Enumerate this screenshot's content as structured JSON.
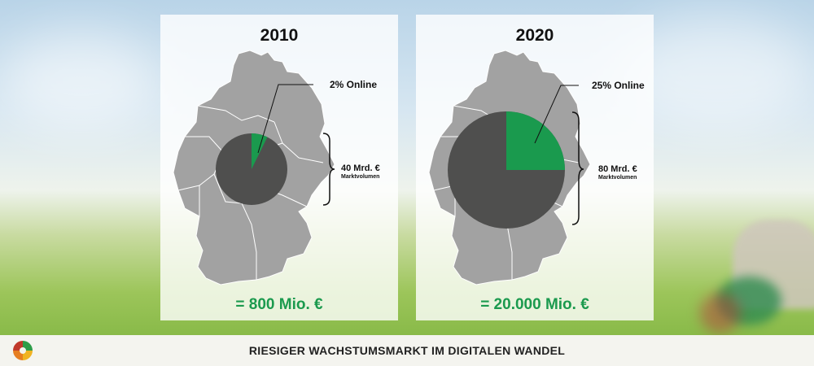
{
  "footer": {
    "title": "RIESIGER WACHSTUMSMARKT IM DIGITALEN WANDEL"
  },
  "colors": {
    "online": "#1a9a4e",
    "offline": "#4f4f4e",
    "map": "#a2a2a2",
    "accent_text": "#1b9a4e"
  },
  "icons": {
    "logo": "brand-logo-icon"
  },
  "chart_data": [
    {
      "type": "pie",
      "title": "2010",
      "categories": [
        "Online",
        "Offline"
      ],
      "values": [
        2,
        98
      ],
      "online_label": "2% Online",
      "volume_value": 40,
      "volume_label": "40 Mrd. €",
      "volume_sublabel": "Marktvolumen",
      "result_label": "= 800 Mio. €"
    },
    {
      "type": "pie",
      "title": "2020",
      "categories": [
        "Online",
        "Offline"
      ],
      "values": [
        25,
        75
      ],
      "online_label": "25% Online",
      "volume_value": 80,
      "volume_label": "80 Mrd. €",
      "volume_sublabel": "Marktvolumen",
      "result_label": "= 20.000 Mio. €"
    }
  ]
}
